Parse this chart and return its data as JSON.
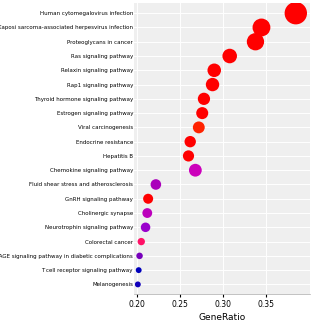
{
  "pathways": [
    "Human cytomegalovirus infection",
    "Kaposi sarcoma-associated herpesvirus infection",
    "Proteoglycans in cancer",
    "Ras signaling pathway",
    "Relaxin signaling pathway",
    "Rap1 signaling pathway",
    "Thyroid hormone signaling pathway",
    "Estrogen signaling pathway",
    "Viral carcinogenesis",
    "Endocrine resistance",
    "Hepatitis B",
    "Chemokine signaling pathway",
    "Fluid shear stress and atherosclerosis",
    "GnRH signaling pathway",
    "Cholinergic synapse",
    "Neurotrophin signaling pathway",
    "Colorectal cancer",
    "AGE-RAGE signaling pathway in diabetic complications",
    "T cell receptor signaling pathway",
    "Melanogenesis"
  ],
  "generatio": [
    0.385,
    0.345,
    0.338,
    0.308,
    0.29,
    0.288,
    0.278,
    0.276,
    0.272,
    0.262,
    0.26,
    0.268,
    0.222,
    0.213,
    0.212,
    0.21,
    0.205,
    0.203,
    0.202,
    0.201
  ],
  "colors": [
    "#FF0000",
    "#FF0000",
    "#FF0000",
    "#FF0000",
    "#FF0000",
    "#FF0000",
    "#FF0000",
    "#FF0000",
    "#FF2200",
    "#FF0000",
    "#FF0000",
    "#CC00BB",
    "#AA00BB",
    "#FF0000",
    "#BB00BB",
    "#9900CC",
    "#FF1166",
    "#7700BB",
    "#0000BB",
    "#1100BB"
  ],
  "sizes": [
    260,
    165,
    155,
    110,
    95,
    93,
    78,
    75,
    73,
    67,
    65,
    85,
    58,
    52,
    50,
    47,
    28,
    22,
    18,
    18
  ],
  "xlim": [
    0.197,
    0.402
  ],
  "xticks": [
    0.2,
    0.25,
    0.3,
    0.35
  ],
  "xtick_labels": [
    "0.20",
    "0.25",
    "0.30",
    "0.35"
  ],
  "xlabel": "GeneRatio",
  "plot_bg": "#efefef",
  "fig_bg": "#ffffff",
  "grid_color": "#ffffff"
}
